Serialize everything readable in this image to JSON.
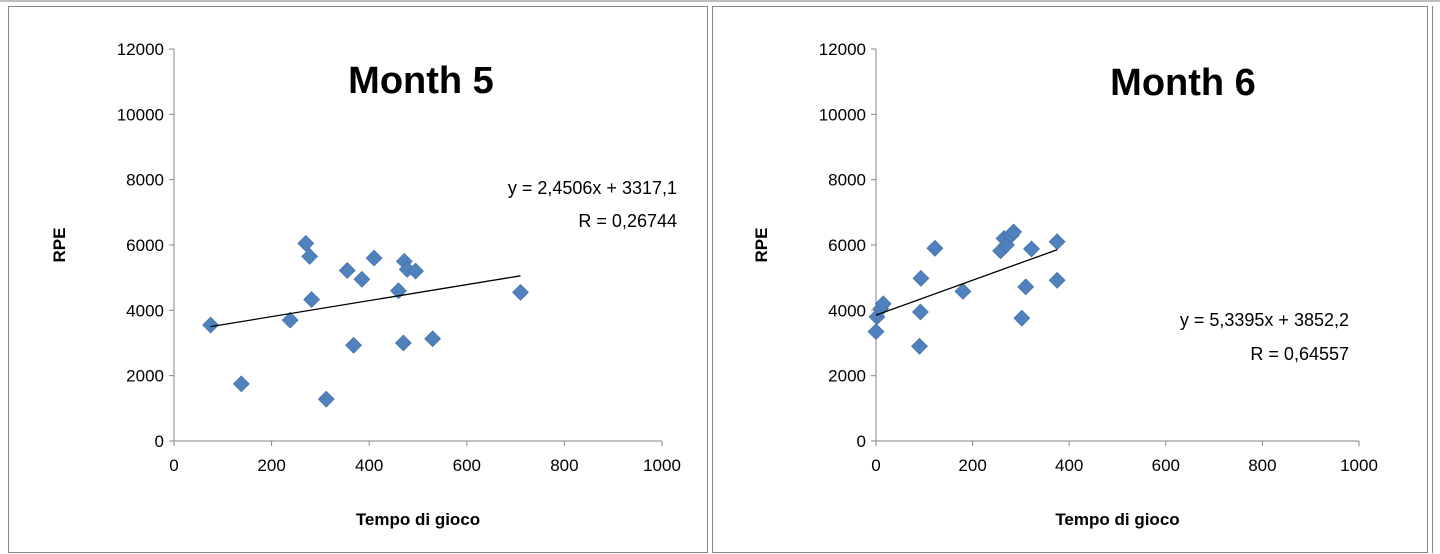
{
  "chart_data": [
    {
      "type": "scatter",
      "title": "Month 5",
      "xlabel": "Tempo di gioco",
      "ylabel": "RPE",
      "xlim": [
        0,
        1000
      ],
      "ylim": [
        0,
        12000
      ],
      "xticks": [
        "0",
        "200",
        "400",
        "600",
        "800",
        "1000"
      ],
      "yticks": [
        "0",
        "2000",
        "4000",
        "6000",
        "8000",
        "10000",
        "12000"
      ],
      "grid": false,
      "marker_color": "#4F81BD",
      "points": [
        {
          "x": 75,
          "y": 3550
        },
        {
          "x": 138,
          "y": 1750
        },
        {
          "x": 238,
          "y": 3700
        },
        {
          "x": 270,
          "y": 6050
        },
        {
          "x": 278,
          "y": 5650
        },
        {
          "x": 282,
          "y": 4330
        },
        {
          "x": 312,
          "y": 1280
        },
        {
          "x": 355,
          "y": 5220
        },
        {
          "x": 368,
          "y": 2930
        },
        {
          "x": 385,
          "y": 4950
        },
        {
          "x": 410,
          "y": 5600
        },
        {
          "x": 460,
          "y": 4600
        },
        {
          "x": 470,
          "y": 3000
        },
        {
          "x": 472,
          "y": 5500
        },
        {
          "x": 478,
          "y": 5250
        },
        {
          "x": 495,
          "y": 5200
        },
        {
          "x": 530,
          "y": 3130
        },
        {
          "x": 710,
          "y": 4550
        }
      ],
      "trendline": {
        "slope": 2.4506,
        "intercept": 3317.1,
        "x_range": [
          75,
          710
        ]
      },
      "equation_label": "y = 2,4506x + 3317,1",
      "r_label": "R = 0,26744"
    },
    {
      "type": "scatter",
      "title": "Month 6",
      "xlabel": "Tempo di gioco",
      "ylabel": "RPE",
      "xlim": [
        0,
        1000
      ],
      "ylim": [
        0,
        12000
      ],
      "xticks": [
        "0",
        "200",
        "400",
        "600",
        "800",
        "1000"
      ],
      "yticks": [
        "0",
        "2000",
        "4000",
        "6000",
        "8000",
        "10000",
        "12000"
      ],
      "grid": false,
      "marker_color": "#4F81BD",
      "points": [
        {
          "x": 0,
          "y": 3350
        },
        {
          "x": 2,
          "y": 3800
        },
        {
          "x": 10,
          "y": 4050
        },
        {
          "x": 15,
          "y": 4200
        },
        {
          "x": 90,
          "y": 2900
        },
        {
          "x": 92,
          "y": 3950
        },
        {
          "x": 93,
          "y": 4980
        },
        {
          "x": 122,
          "y": 5900
        },
        {
          "x": 180,
          "y": 4580
        },
        {
          "x": 258,
          "y": 5820
        },
        {
          "x": 265,
          "y": 6200
        },
        {
          "x": 270,
          "y": 6000
        },
        {
          "x": 280,
          "y": 6300
        },
        {
          "x": 285,
          "y": 6400
        },
        {
          "x": 302,
          "y": 3760
        },
        {
          "x": 310,
          "y": 4720
        },
        {
          "x": 322,
          "y": 5880
        },
        {
          "x": 375,
          "y": 6100
        },
        {
          "x": 375,
          "y": 4920
        }
      ],
      "trendline": {
        "slope": 5.3395,
        "intercept": 3852.2,
        "x_range": [
          0,
          375
        ]
      },
      "equation_label": "y = 5,3395x + 3852,2",
      "r_label": "R = 0,64557"
    }
  ]
}
